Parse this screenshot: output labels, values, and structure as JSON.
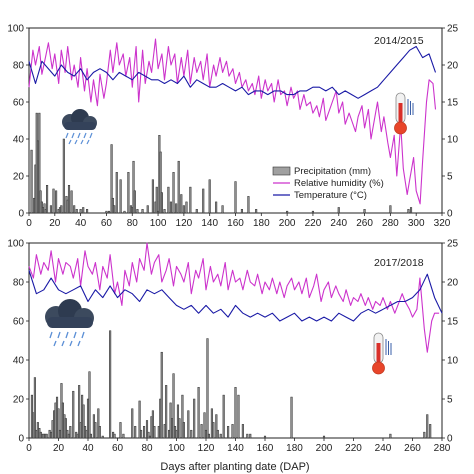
{
  "chart_data": [
    {
      "type": "bar+line",
      "season_label": "2014/2015",
      "x_range": [
        0,
        320
      ],
      "x_ticks": [
        0,
        20,
        40,
        60,
        80,
        100,
        120,
        140,
        160,
        180,
        200,
        220,
        240,
        260,
        280,
        300,
        320
      ],
      "y_left_range": [
        0,
        100
      ],
      "y_left_ticks": [
        0,
        20,
        40,
        60,
        80,
        100
      ],
      "y_right_range": [
        0,
        25
      ],
      "y_right_ticks": [
        0,
        5,
        10,
        15,
        20,
        25
      ],
      "legend": [
        {
          "label": "Precipitation (mm)",
          "color": "#a0a0a0"
        },
        {
          "label": "Relative humidity (%)",
          "color": "#cc33cc"
        },
        {
          "label": "Temperature (°C)",
          "color": "#1a1aa6"
        }
      ],
      "precipitation": {
        "name": "Precipitation (mm)",
        "x": [
          2,
          4,
          5,
          6,
          7,
          8,
          9,
          10,
          11,
          12,
          13,
          14,
          17,
          19,
          21,
          23,
          24,
          25,
          27,
          29,
          30,
          31,
          33,
          35,
          37,
          40,
          42,
          45,
          60,
          62,
          64,
          65,
          66,
          68,
          71,
          74,
          77,
          79,
          80,
          81,
          82,
          84,
          88,
          92,
          96,
          98,
          99,
          100,
          101,
          102,
          103,
          105,
          108,
          110,
          112,
          114,
          116,
          118,
          120,
          122,
          125,
          130,
          135,
          140,
          145,
          150,
          160,
          165,
          170,
          176,
          200,
          220,
          240,
          260,
          280,
          294,
          296
        ],
        "values": [
          34,
          8,
          26,
          54,
          39,
          54,
          12,
          6,
          3,
          5,
          2,
          15,
          4,
          13,
          12,
          2,
          3,
          4,
          40,
          9,
          7,
          15,
          12,
          4,
          2,
          2,
          3,
          2,
          1,
          1,
          37,
          8,
          4,
          22,
          18,
          1,
          22,
          4,
          3,
          28,
          12,
          2,
          2,
          4,
          18,
          6,
          14,
          1,
          42,
          33,
          11,
          2,
          14,
          6,
          22,
          5,
          28,
          10,
          4,
          6,
          14,
          2,
          13,
          18,
          6,
          4,
          17,
          2,
          9,
          2,
          1,
          1,
          3,
          2,
          4,
          2,
          3
        ]
      },
      "relative_humidity": {
        "name": "Relative humidity (%)",
        "x": [
          0,
          3,
          5,
          8,
          10,
          13,
          15,
          18,
          20,
          23,
          25,
          28,
          30,
          33,
          35,
          38,
          40,
          43,
          45,
          48,
          50,
          53,
          55,
          58,
          60,
          63,
          65,
          68,
          70,
          73,
          75,
          78,
          80,
          83,
          85,
          88,
          90,
          93,
          95,
          98,
          100,
          103,
          105,
          108,
          110,
          113,
          115,
          118,
          120,
          123,
          125,
          128,
          130,
          133,
          135,
          138,
          140,
          143,
          145,
          148,
          150,
          153,
          155,
          158,
          160,
          163,
          165,
          168,
          170,
          173,
          175,
          178,
          180,
          183,
          185,
          188,
          190,
          193,
          195,
          198,
          200,
          203,
          205,
          208,
          210,
          213,
          215,
          218,
          220,
          223,
          225,
          228,
          230,
          233,
          235,
          238,
          240,
          243,
          245,
          248,
          250,
          253,
          255,
          258,
          260,
          263,
          265,
          268,
          270,
          273,
          275,
          278,
          280,
          283,
          285,
          288,
          290,
          293,
          295,
          298,
          300,
          303,
          305,
          308,
          310,
          313,
          315
        ],
        "values": [
          68,
          88,
          80,
          90,
          75,
          85,
          92,
          78,
          86,
          70,
          88,
          76,
          90,
          72,
          80,
          68,
          84,
          66,
          78,
          60,
          72,
          58,
          75,
          62,
          70,
          88,
          76,
          92,
          80,
          86,
          74,
          84,
          68,
          90,
          60,
          88,
          70,
          82,
          76,
          94,
          78,
          86,
          72,
          90,
          80,
          86,
          70,
          84,
          74,
          88,
          70,
          84,
          76,
          82,
          72,
          86,
          68,
          80,
          74,
          84,
          76,
          82,
          74,
          78,
          70,
          76,
          68,
          72,
          66,
          70,
          64,
          74,
          62,
          72,
          66,
          70,
          60,
          72,
          64,
          66,
          58,
          68,
          62,
          66,
          56,
          64,
          58,
          60,
          54,
          58,
          52,
          62,
          50,
          56,
          60,
          66,
          54,
          60,
          48,
          54,
          50,
          44,
          52,
          58,
          46,
          56,
          40,
          52,
          60,
          44,
          52,
          38,
          30,
          42,
          20,
          48,
          24,
          10,
          18,
          30,
          12,
          5,
          28,
          60,
          72,
          70,
          56
        ]
      },
      "temperature": {
        "name": "Temperature (°C)",
        "x": [
          0,
          5,
          10,
          15,
          20,
          25,
          30,
          35,
          40,
          45,
          50,
          55,
          60,
          65,
          70,
          75,
          80,
          85,
          90,
          95,
          100,
          105,
          110,
          115,
          120,
          125,
          130,
          135,
          140,
          145,
          150,
          155,
          160,
          165,
          170,
          175,
          180,
          185,
          190,
          195,
          200,
          205,
          210,
          215,
          220,
          225,
          230,
          235,
          240,
          245,
          250,
          255,
          260,
          265,
          270,
          275,
          280,
          285,
          290,
          295,
          300,
          305,
          310,
          315
        ],
        "values": [
          20.5,
          17.5,
          20.5,
          19.5,
          18.5,
          20,
          19,
          18.5,
          19.5,
          18,
          19,
          19.5,
          19,
          18,
          19,
          18.5,
          18,
          19,
          18.5,
          18,
          18,
          17.5,
          18,
          17.5,
          18.5,
          17,
          18,
          17.5,
          17,
          17,
          17.5,
          17,
          16.5,
          17,
          16,
          16.5,
          16.5,
          16,
          16.5,
          16.5,
          16,
          16,
          16.5,
          16.5,
          17,
          17,
          16.5,
          17,
          16,
          16.5,
          16,
          15.5,
          16,
          16.5,
          17,
          18,
          19,
          20,
          21,
          22,
          22.5,
          21,
          21.5,
          19
        ]
      }
    },
    {
      "type": "bar+line",
      "season_label": "2017/2018",
      "x_range": [
        0,
        280
      ],
      "x_ticks": [
        0,
        20,
        40,
        60,
        80,
        100,
        120,
        140,
        160,
        180,
        200,
        220,
        240,
        260,
        280
      ],
      "y_left_range": [
        0,
        100
      ],
      "y_left_ticks": [
        0,
        20,
        40,
        60,
        80,
        100
      ],
      "y_right_range": [
        0,
        25
      ],
      "y_right_ticks": [
        0,
        5,
        10,
        15,
        20,
        25
      ],
      "xlabel": "Days after planting date (DAP)",
      "precipitation": {
        "name": "Precipitation (mm)",
        "x": [
          2,
          3,
          4,
          5,
          6,
          7,
          8,
          9,
          10,
          11,
          12,
          14,
          15,
          16,
          17,
          18,
          19,
          20,
          21,
          22,
          23,
          24,
          25,
          26,
          27,
          28,
          30,
          32,
          33,
          34,
          35,
          36,
          37,
          38,
          39,
          40,
          41,
          42,
          44,
          45,
          47,
          48,
          50,
          55,
          57,
          58,
          62,
          64,
          70,
          72,
          75,
          76,
          78,
          80,
          81,
          82,
          83,
          84,
          85,
          88,
          89,
          90,
          92,
          93,
          95,
          96,
          97,
          98,
          99,
          100,
          101,
          102,
          104,
          105,
          108,
          110,
          112,
          115,
          117,
          119,
          120,
          121,
          122,
          124,
          125,
          127,
          128,
          130,
          132,
          135,
          138,
          140,
          142,
          145,
          148,
          150,
          160,
          178,
          200,
          245,
          268,
          270,
          272
        ],
        "values": [
          22,
          13,
          31,
          4,
          8,
          5,
          3,
          2,
          2,
          2,
          2,
          4,
          3,
          9,
          14,
          18,
          21,
          15,
          4,
          28,
          18,
          12,
          10,
          4,
          2,
          6,
          24,
          3,
          2,
          27,
          8,
          22,
          17,
          6,
          4,
          20,
          34,
          2,
          12,
          8,
          15,
          6,
          1,
          55,
          3,
          2,
          8,
          2,
          15,
          6,
          19,
          4,
          6,
          9,
          3,
          1,
          11,
          14,
          6,
          6,
          20,
          44,
          7,
          27,
          4,
          18,
          10,
          33,
          6,
          4,
          17,
          10,
          22,
          8,
          14,
          4,
          20,
          26,
          7,
          13,
          4,
          51,
          2,
          15,
          8,
          12,
          4,
          2,
          22,
          6,
          7,
          26,
          22,
          7,
          2,
          2,
          1,
          21,
          1,
          2,
          3,
          12,
          7
        ]
      },
      "relative_humidity": {
        "name": "Relative humidity (%)",
        "x": [
          0,
          3,
          5,
          8,
          10,
          13,
          15,
          18,
          20,
          23,
          25,
          28,
          30,
          33,
          35,
          38,
          40,
          43,
          45,
          48,
          50,
          53,
          55,
          58,
          60,
          63,
          65,
          68,
          70,
          73,
          75,
          78,
          80,
          83,
          85,
          88,
          90,
          93,
          95,
          98,
          100,
          103,
          105,
          108,
          110,
          113,
          115,
          118,
          120,
          123,
          125,
          128,
          130,
          133,
          135,
          138,
          140,
          143,
          145,
          148,
          150,
          153,
          155,
          158,
          160,
          163,
          165,
          168,
          170,
          173,
          175,
          178,
          180,
          183,
          185,
          188,
          190,
          193,
          195,
          198,
          200,
          203,
          205,
          208,
          210,
          213,
          215,
          218,
          220,
          223,
          225,
          228,
          230,
          233,
          235,
          238,
          240,
          243,
          245,
          248,
          250,
          253,
          255,
          258,
          260,
          263,
          265,
          268,
          270,
          273,
          275,
          278
        ],
        "values": [
          88,
          82,
          94,
          84,
          90,
          86,
          96,
          80,
          92,
          84,
          90,
          88,
          82,
          92,
          78,
          96,
          88,
          84,
          90,
          76,
          88,
          82,
          94,
          74,
          80,
          68,
          86,
          78,
          90,
          80,
          92,
          86,
          100,
          84,
          90,
          94,
          80,
          86,
          92,
          78,
          88,
          84,
          80,
          90,
          74,
          86,
          82,
          92,
          76,
          88,
          80,
          84,
          78,
          90,
          76,
          86,
          80,
          82,
          76,
          86,
          80,
          78,
          84,
          74,
          80,
          76,
          82,
          74,
          80,
          72,
          78,
          82,
          76,
          80,
          74,
          82,
          72,
          78,
          84,
          70,
          76,
          80,
          72,
          78,
          74,
          70,
          76,
          68,
          72,
          70,
          74,
          68,
          72,
          66,
          70,
          68,
          72,
          66,
          70,
          64,
          68,
          74,
          70,
          66,
          62,
          66,
          82,
          56,
          44,
          60,
          64,
          64
        ]
      },
      "temperature": {
        "name": "Temperature (°C)",
        "x": [
          0,
          5,
          10,
          15,
          20,
          25,
          30,
          35,
          40,
          45,
          50,
          55,
          60,
          65,
          70,
          75,
          80,
          85,
          90,
          95,
          100,
          105,
          110,
          115,
          120,
          125,
          130,
          135,
          140,
          145,
          150,
          155,
          160,
          165,
          170,
          175,
          180,
          185,
          190,
          195,
          200,
          205,
          210,
          215,
          220,
          225,
          230,
          235,
          240,
          245,
          250,
          255,
          260,
          265,
          270,
          275,
          280
        ],
        "values": [
          21.5,
          18.5,
          19,
          20.5,
          19,
          18.5,
          19,
          19.5,
          17.5,
          19,
          18,
          19.5,
          18,
          19,
          18.5,
          17.5,
          19,
          18.5,
          19,
          18,
          17,
          16.5,
          17,
          16,
          17,
          16,
          16.5,
          15.5,
          17,
          16,
          15.5,
          16,
          15.5,
          16,
          15,
          15.5,
          16,
          15,
          15.5,
          15,
          15.5,
          15,
          16,
          15.5,
          15,
          16,
          16.5,
          16,
          16.5,
          17,
          17.5,
          17.5,
          18,
          19,
          21,
          18,
          16
        ]
      }
    }
  ]
}
